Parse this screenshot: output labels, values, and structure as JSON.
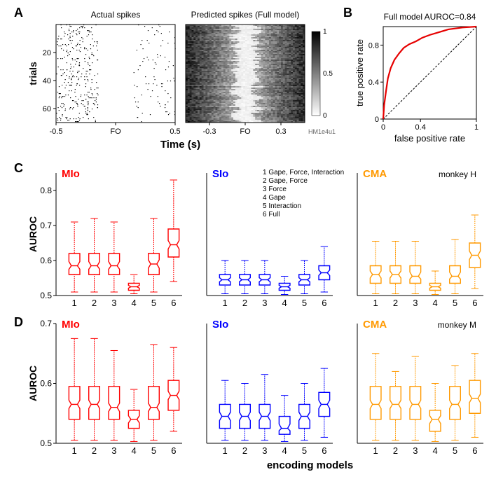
{
  "labels": {
    "A": "A",
    "B": "B",
    "C": "C",
    "D": "D"
  },
  "panelA": {
    "left_title": "Actual spikes",
    "right_title": "Predicted spikes (Full model)",
    "ylabel": "trials",
    "xlabel": "Time (s)",
    "y_ticks": [
      "20",
      "40",
      "60"
    ],
    "x_ticks_left": [
      "-0.5",
      "FO",
      "0.5"
    ],
    "x_ticks_right": [
      "-0.3",
      "FO",
      "0.3"
    ],
    "colorbar": [
      "1",
      "0.5",
      "0"
    ],
    "id_label": "HM1e4u1"
  },
  "panelB": {
    "title": "Full model AUROC=0.84",
    "ylabel": "true positive rate",
    "xlabel": "false positive rate",
    "y_ticks": [
      "0.8",
      "0.4",
      "0"
    ],
    "x_ticks": [
      "0",
      "0.4",
      "1"
    ],
    "curve_color": "#e60000",
    "diag_color": "#000000",
    "curve": [
      [
        0,
        0
      ],
      [
        0.01,
        0.15
      ],
      [
        0.03,
        0.3
      ],
      [
        0.05,
        0.44
      ],
      [
        0.08,
        0.55
      ],
      [
        0.12,
        0.64
      ],
      [
        0.17,
        0.71
      ],
      [
        0.22,
        0.77
      ],
      [
        0.28,
        0.81
      ],
      [
        0.35,
        0.84
      ],
      [
        0.42,
        0.88
      ],
      [
        0.5,
        0.91
      ],
      [
        0.6,
        0.94
      ],
      [
        0.7,
        0.97
      ],
      [
        0.85,
        0.99
      ],
      [
        1.0,
        1.0
      ]
    ]
  },
  "panelC": {
    "ylabel": "AUROC",
    "ylim": [
      0.5,
      0.85
    ],
    "y_ticks": [
      "0.5",
      "0.6",
      "0.7",
      "0.8"
    ],
    "x_ticks": [
      "1",
      "2",
      "3",
      "4",
      "5",
      "6"
    ],
    "legend_items": [
      "Gape, Force, Interaction",
      "Gape, Force",
      "Force",
      "Gape",
      "Interaction",
      "Full"
    ],
    "monkey_label": "monkey H",
    "groups": [
      {
        "name": "MIo",
        "color": "#ff0000",
        "boxes": [
          {
            "whisker_low": 0.51,
            "q1": 0.56,
            "median": 0.585,
            "q3": 0.62,
            "whisker_high": 0.71
          },
          {
            "whisker_low": 0.51,
            "q1": 0.56,
            "median": 0.585,
            "q3": 0.62,
            "whisker_high": 0.72
          },
          {
            "whisker_low": 0.51,
            "q1": 0.56,
            "median": 0.585,
            "q3": 0.62,
            "whisker_high": 0.71
          },
          {
            "whisker_low": 0.505,
            "q1": 0.515,
            "median": 0.525,
            "q3": 0.535,
            "whisker_high": 0.56
          },
          {
            "whisker_low": 0.51,
            "q1": 0.56,
            "median": 0.59,
            "q3": 0.62,
            "whisker_high": 0.72
          },
          {
            "whisker_low": 0.54,
            "q1": 0.61,
            "median": 0.645,
            "q3": 0.69,
            "whisker_high": 0.83
          }
        ]
      },
      {
        "name": "SIo",
        "color": "#0000ff",
        "boxes": [
          {
            "whisker_low": 0.505,
            "q1": 0.53,
            "median": 0.545,
            "q3": 0.56,
            "whisker_high": 0.6
          },
          {
            "whisker_low": 0.505,
            "q1": 0.53,
            "median": 0.545,
            "q3": 0.56,
            "whisker_high": 0.6
          },
          {
            "whisker_low": 0.505,
            "q1": 0.53,
            "median": 0.545,
            "q3": 0.56,
            "whisker_high": 0.6
          },
          {
            "whisker_low": 0.503,
            "q1": 0.515,
            "median": 0.525,
            "q3": 0.535,
            "whisker_high": 0.555
          },
          {
            "whisker_low": 0.505,
            "q1": 0.53,
            "median": 0.545,
            "q3": 0.56,
            "whisker_high": 0.6
          },
          {
            "whisker_low": 0.51,
            "q1": 0.545,
            "median": 0.565,
            "q3": 0.585,
            "whisker_high": 0.64
          }
        ]
      },
      {
        "name": "CMA",
        "color": "#ff9900",
        "boxes": [
          {
            "whisker_low": 0.505,
            "q1": 0.535,
            "median": 0.56,
            "q3": 0.585,
            "whisker_high": 0.655
          },
          {
            "whisker_low": 0.505,
            "q1": 0.535,
            "median": 0.56,
            "q3": 0.585,
            "whisker_high": 0.655
          },
          {
            "whisker_low": 0.505,
            "q1": 0.535,
            "median": 0.555,
            "q3": 0.585,
            "whisker_high": 0.655
          },
          {
            "whisker_low": 0.503,
            "q1": 0.515,
            "median": 0.525,
            "q3": 0.535,
            "whisker_high": 0.57
          },
          {
            "whisker_low": 0.505,
            "q1": 0.535,
            "median": 0.555,
            "q3": 0.585,
            "whisker_high": 0.66
          },
          {
            "whisker_low": 0.52,
            "q1": 0.58,
            "median": 0.615,
            "q3": 0.65,
            "whisker_high": 0.73
          }
        ]
      }
    ]
  },
  "panelD": {
    "ylabel": "AUROC",
    "xlabel": "encoding models",
    "ylim": [
      0.5,
      0.7
    ],
    "y_ticks": [
      "0.5",
      "0.6",
      "0.7"
    ],
    "x_ticks": [
      "1",
      "2",
      "3",
      "4",
      "5",
      "6"
    ],
    "monkey_label": "monkey M",
    "groups": [
      {
        "name": "MIo",
        "color": "#ff0000",
        "boxes": [
          {
            "whisker_low": 0.505,
            "q1": 0.54,
            "median": 0.565,
            "q3": 0.595,
            "whisker_high": 0.675
          },
          {
            "whisker_low": 0.505,
            "q1": 0.54,
            "median": 0.565,
            "q3": 0.595,
            "whisker_high": 0.675
          },
          {
            "whisker_low": 0.505,
            "q1": 0.54,
            "median": 0.56,
            "q3": 0.595,
            "whisker_high": 0.655
          },
          {
            "whisker_low": 0.503,
            "q1": 0.525,
            "median": 0.54,
            "q3": 0.555,
            "whisker_high": 0.59
          },
          {
            "whisker_low": 0.505,
            "q1": 0.54,
            "median": 0.56,
            "q3": 0.595,
            "whisker_high": 0.665
          },
          {
            "whisker_low": 0.52,
            "q1": 0.555,
            "median": 0.58,
            "q3": 0.605,
            "whisker_high": 0.66
          }
        ]
      },
      {
        "name": "SIo",
        "color": "#0000ff",
        "boxes": [
          {
            "whisker_low": 0.505,
            "q1": 0.525,
            "median": 0.545,
            "q3": 0.565,
            "whisker_high": 0.605
          },
          {
            "whisker_low": 0.505,
            "q1": 0.525,
            "median": 0.545,
            "q3": 0.565,
            "whisker_high": 0.6
          },
          {
            "whisker_low": 0.505,
            "q1": 0.525,
            "median": 0.545,
            "q3": 0.565,
            "whisker_high": 0.615
          },
          {
            "whisker_low": 0.503,
            "q1": 0.515,
            "median": 0.525,
            "q3": 0.545,
            "whisker_high": 0.58
          },
          {
            "whisker_low": 0.505,
            "q1": 0.525,
            "median": 0.545,
            "q3": 0.565,
            "whisker_high": 0.6
          },
          {
            "whisker_low": 0.51,
            "q1": 0.545,
            "median": 0.565,
            "q3": 0.585,
            "whisker_high": 0.625
          }
        ]
      },
      {
        "name": "CMA",
        "color": "#ff9900",
        "boxes": [
          {
            "whisker_low": 0.505,
            "q1": 0.54,
            "median": 0.565,
            "q3": 0.595,
            "whisker_high": 0.65
          },
          {
            "whisker_low": 0.505,
            "q1": 0.54,
            "median": 0.565,
            "q3": 0.595,
            "whisker_high": 0.62
          },
          {
            "whisker_low": 0.505,
            "q1": 0.54,
            "median": 0.565,
            "q3": 0.595,
            "whisker_high": 0.645
          },
          {
            "whisker_low": 0.503,
            "q1": 0.52,
            "median": 0.54,
            "q3": 0.555,
            "whisker_high": 0.6
          },
          {
            "whisker_low": 0.505,
            "q1": 0.54,
            "median": 0.565,
            "q3": 0.595,
            "whisker_high": 0.63
          },
          {
            "whisker_low": 0.51,
            "q1": 0.55,
            "median": 0.575,
            "q3": 0.605,
            "whisker_high": 0.65
          }
        ]
      }
    ]
  }
}
